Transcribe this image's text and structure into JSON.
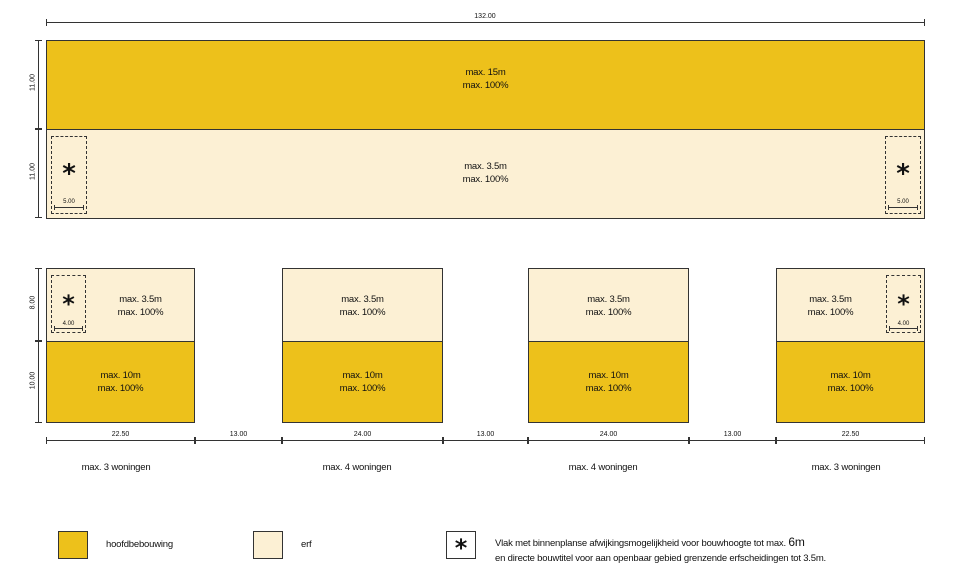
{
  "top_block": {
    "total_width": "132.00",
    "main": {
      "height_dim": "11.00",
      "line1": "max. 15m",
      "line2": "max. 100%"
    },
    "yard": {
      "height_dim": "11.00",
      "line1": "max. 3.5m",
      "line2": "max. 100%",
      "zone_dim_left": "5.00",
      "zone_dim_right": "5.00"
    }
  },
  "blocks": [
    {
      "yard_line1": "max. 3.5m",
      "yard_line2": "max. 100%",
      "main_line1": "max. 10m",
      "main_line2": "max. 100%",
      "width_dim": "22.50",
      "caption": "max. 3 woningen",
      "zone_dim": "4.00"
    },
    {
      "yard_line1": "max. 3.5m",
      "yard_line2": "max. 100%",
      "main_line1": "max. 10m",
      "main_line2": "max. 100%",
      "width_dim": "24.00",
      "caption": "max. 4 woningen"
    },
    {
      "yard_line1": "max. 3.5m",
      "yard_line2": "max. 100%",
      "main_line1": "max. 10m",
      "main_line2": "max. 100%",
      "width_dim": "24.00",
      "caption": "max. 4 woningen"
    },
    {
      "yard_line1": "max. 3.5m",
      "yard_line2": "max. 100%",
      "main_line1": "max. 10m",
      "main_line2": "max. 100%",
      "width_dim": "22.50",
      "caption": "max. 3 woningen",
      "zone_dim": "4.00"
    }
  ],
  "gaps": [
    "13.00",
    "13.00",
    "13.00"
  ],
  "lower_dims": {
    "yard_height": "8.00",
    "main_height": "10.00"
  },
  "star_symbol": "*",
  "legend": {
    "main_label": "hoofdbebouwing",
    "yard_label": "erf",
    "star_text_line1": "Vlak met binnenplanse afwijkingsmogelijkheid voor bouwhoogte tot max.",
    "star_text_height": "6m",
    "star_text_line2": "en directe bouwtitel voor aan openbaar gebied grenzende erfscheidingen tot 3.5m."
  },
  "colors": {
    "main": "#EDC11B",
    "yard": "#FCF0D4",
    "line": "#333333"
  }
}
